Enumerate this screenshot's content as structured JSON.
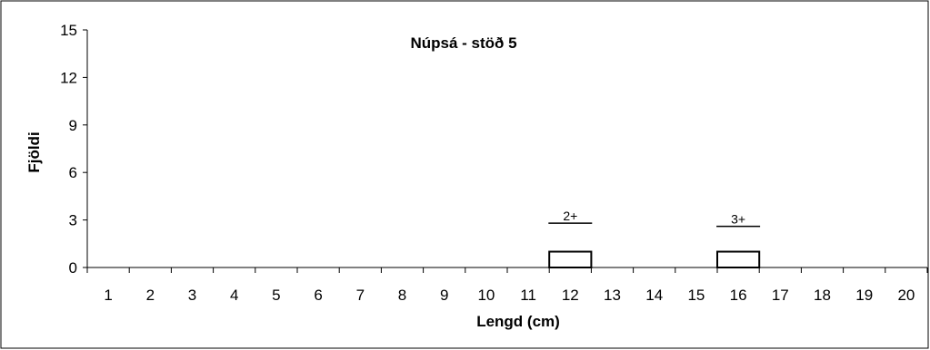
{
  "chart_data": {
    "type": "bar",
    "title": "Núpsá - stöð 5",
    "xlabel": "Lengd (cm)",
    "ylabel": "Fjöldi",
    "categories": [
      "1",
      "2",
      "3",
      "4",
      "5",
      "6",
      "7",
      "8",
      "9",
      "10",
      "11",
      "12",
      "13",
      "14",
      "15",
      "16",
      "17",
      "18",
      "19",
      "20"
    ],
    "values": [
      0,
      0,
      0,
      0,
      0,
      0,
      0,
      0,
      0,
      0,
      0,
      1,
      0,
      0,
      0,
      1,
      0,
      0,
      0,
      0
    ],
    "ylim": [
      0,
      15
    ],
    "yticks": [
      0,
      3,
      6,
      9,
      12,
      15
    ],
    "grid": false,
    "bar_color": "#ffffff",
    "bar_edge_color": "#000000",
    "annotations": [
      {
        "text": "2+",
        "category": "12",
        "y": 2.8
      },
      {
        "text": "3+",
        "category": "16",
        "y": 2.6
      }
    ]
  }
}
